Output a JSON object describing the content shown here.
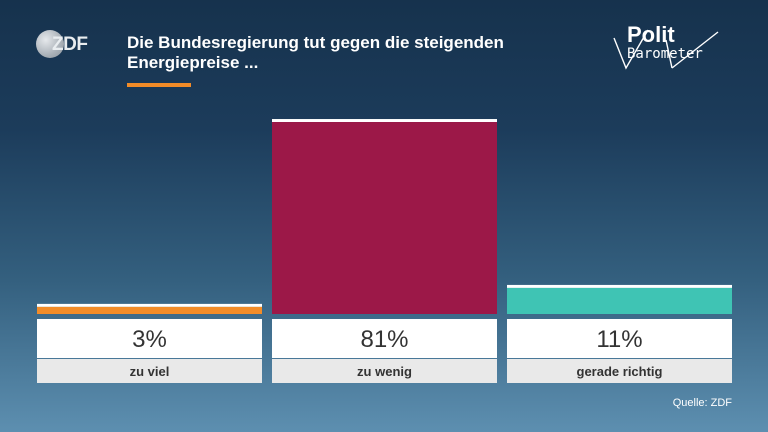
{
  "header": {
    "title": "Die Bundesregierung tut gegen die steigenden Energiepreise ...",
    "accent_color": "#f28c28"
  },
  "logos": {
    "zdf_text": "ZDF",
    "politbarometer_line1": "Polit",
    "politbarometer_line2": "Barometer"
  },
  "source": "Quelle: ZDF",
  "chart_data": {
    "type": "bar",
    "title": "Die Bundesregierung tut gegen die steigenden Energiepreise ...",
    "categories": [
      "zu viel",
      "zu wenig",
      "gerade richtig"
    ],
    "values": [
      3,
      81,
      11
    ],
    "value_labels": [
      "3%",
      "81%",
      "11%"
    ],
    "colors": [
      "#f28c28",
      "#9c1848",
      "#3fc4b4"
    ],
    "ylim": [
      0,
      100
    ],
    "unit": "%",
    "grid": false,
    "legend": "none"
  }
}
